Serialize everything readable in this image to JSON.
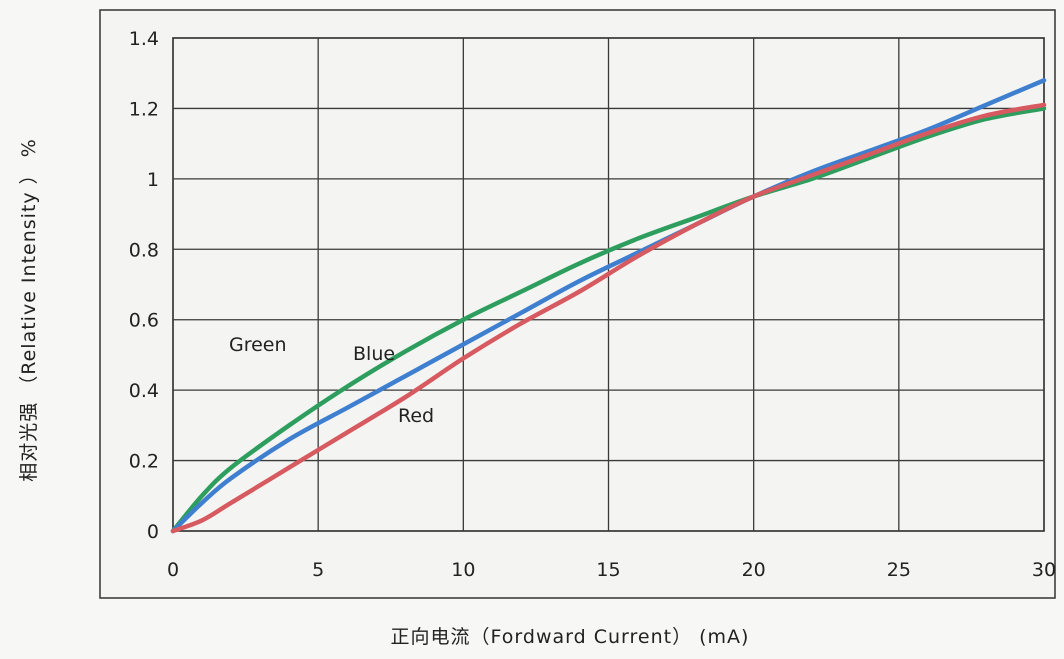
{
  "chart_data": {
    "type": "line",
    "title": "",
    "xlabel": "正向电流（Fordward Current） (mA)",
    "ylabel": "相对光强 （Relative Intensity ） %",
    "xlim": [
      0,
      30
    ],
    "ylim": [
      0,
      1.4
    ],
    "grid": true,
    "x_ticks": [
      0,
      5,
      10,
      15,
      20,
      25,
      30
    ],
    "y_ticks": [
      0,
      0.2,
      0.4,
      0.6,
      0.8,
      1,
      1.2,
      1.4
    ],
    "x_tick_labels": [
      "0",
      "5",
      "10",
      "15",
      "20",
      "25",
      "30"
    ],
    "y_tick_labels": [
      "0",
      "0.2",
      "0.4",
      "0.6",
      "0.8",
      "1",
      "1.2",
      "1.4"
    ],
    "x": [
      0,
      1,
      2,
      4,
      6,
      8,
      10,
      12,
      14,
      16,
      18,
      20,
      22,
      24,
      26,
      28,
      30
    ],
    "series": [
      {
        "name": "Green",
        "color": "#2e9e5e",
        "values": [
          0,
          0.1,
          0.18,
          0.3,
          0.41,
          0.51,
          0.6,
          0.68,
          0.76,
          0.83,
          0.89,
          0.95,
          1.0,
          1.06,
          1.12,
          1.17,
          1.2
        ]
      },
      {
        "name": "Blue",
        "color": "#3f7fd0",
        "values": [
          0,
          0.08,
          0.15,
          0.26,
          0.35,
          0.44,
          0.53,
          0.62,
          0.71,
          0.79,
          0.87,
          0.95,
          1.02,
          1.08,
          1.14,
          1.21,
          1.28
        ]
      },
      {
        "name": "Red",
        "color": "#d65a60",
        "values": [
          0,
          0.03,
          0.08,
          0.18,
          0.28,
          0.38,
          0.49,
          0.59,
          0.68,
          0.78,
          0.87,
          0.95,
          1.01,
          1.07,
          1.13,
          1.18,
          1.21
        ]
      }
    ]
  }
}
